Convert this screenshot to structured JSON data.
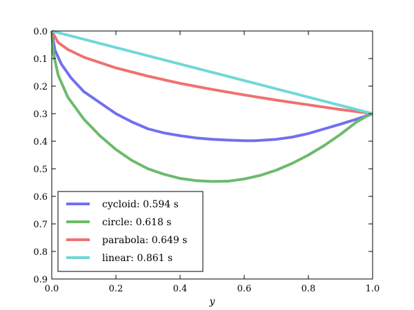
{
  "chart_data": {
    "type": "line",
    "title": "",
    "xlabel": "y",
    "ylabel": "",
    "xlim": [
      0.0,
      1.0
    ],
    "ylim": [
      0.0,
      0.9
    ],
    "y_inverted": true,
    "grid": false,
    "legend_position": "lower-left",
    "xticks": [
      "0.0",
      "0.2",
      "0.4",
      "0.6",
      "0.8",
      "1.0"
    ],
    "yticks": [
      "0.0",
      "0.1",
      "0.2",
      "0.3",
      "0.4",
      "0.5",
      "0.6",
      "0.7",
      "0.8",
      "0.9"
    ],
    "series": [
      {
        "name": "cycloid: 0.594 s",
        "color": "#7070f0",
        "x": [
          0.0,
          0.01,
          0.03,
          0.06,
          0.1,
          0.15,
          0.2,
          0.25,
          0.3,
          0.35,
          0.4,
          0.45,
          0.5,
          0.55,
          0.6,
          0.63,
          0.65,
          0.7,
          0.75,
          0.8,
          0.85,
          0.9,
          0.95,
          1.0
        ],
        "y": [
          0.0,
          0.07,
          0.12,
          0.17,
          0.22,
          0.26,
          0.3,
          0.33,
          0.355,
          0.37,
          0.38,
          0.388,
          0.393,
          0.396,
          0.398,
          0.398,
          0.397,
          0.393,
          0.385,
          0.372,
          0.355,
          0.338,
          0.32,
          0.3
        ]
      },
      {
        "name": "circle: 0.618 s",
        "color": "#6cba6c",
        "x": [
          0.0,
          0.005,
          0.02,
          0.05,
          0.1,
          0.15,
          0.2,
          0.25,
          0.3,
          0.35,
          0.4,
          0.45,
          0.5,
          0.55,
          0.6,
          0.65,
          0.7,
          0.75,
          0.8,
          0.85,
          0.9,
          0.95,
          0.98,
          1.0
        ],
        "y": [
          0.0,
          0.08,
          0.16,
          0.24,
          0.32,
          0.38,
          0.43,
          0.47,
          0.5,
          0.52,
          0.535,
          0.543,
          0.546,
          0.545,
          0.537,
          0.524,
          0.505,
          0.48,
          0.45,
          0.415,
          0.375,
          0.33,
          0.31,
          0.3
        ]
      },
      {
        "name": "parabola: 0.649 s",
        "color": "#f07070",
        "x": [
          0.0,
          0.02,
          0.05,
          0.1,
          0.2,
          0.3,
          0.4,
          0.5,
          0.6,
          0.7,
          0.8,
          0.9,
          1.0
        ],
        "y": [
          0.0,
          0.042,
          0.067,
          0.095,
          0.134,
          0.164,
          0.19,
          0.212,
          0.232,
          0.251,
          0.268,
          0.285,
          0.3
        ]
      },
      {
        "name": "linear: 0.861 s",
        "color": "#70d8d8",
        "x": [
          0.0,
          1.0
        ],
        "y": [
          0.0,
          0.3
        ]
      }
    ]
  }
}
